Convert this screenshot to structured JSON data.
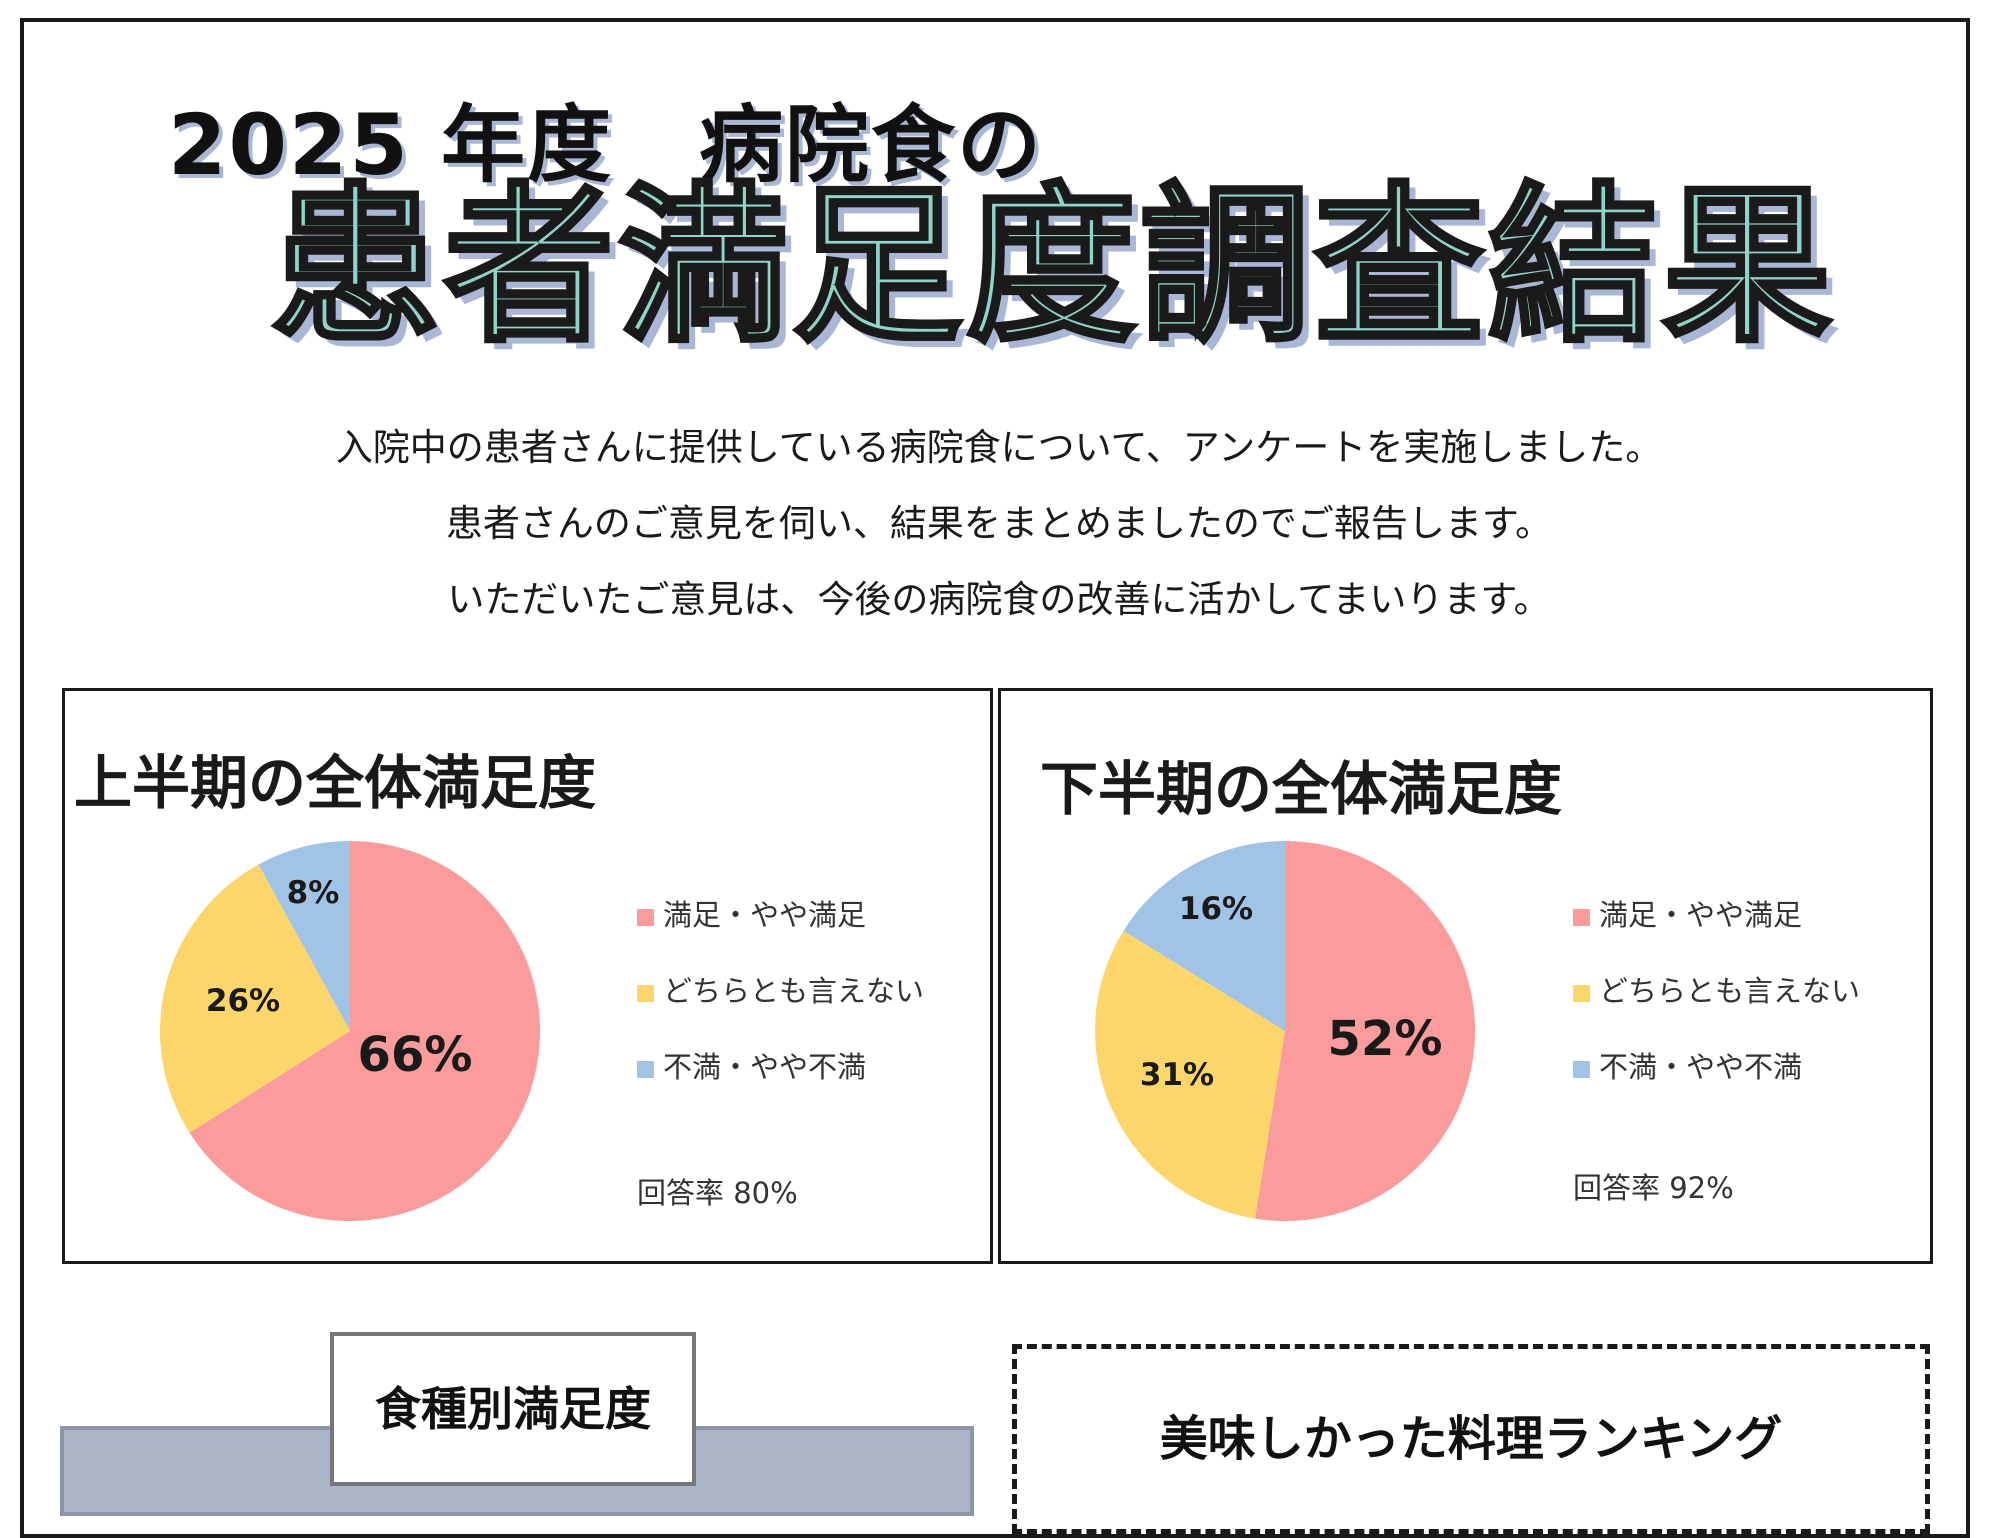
{
  "title": {
    "line1": "2025 年度　病院食の",
    "line2": "患者満足度調査結果"
  },
  "intro": [
    "入院中の患者さんに提供している病院食について、アンケートを実施しました。",
    "患者さんのご意見を伺い、結果をまとめましたのでご報告します。",
    "いただいたご意見は、今後の病院食の改善に活かしてまいります。"
  ],
  "colors": {
    "satisfied": "#fb9b9b",
    "neutral": "#fdd66b",
    "unsatisfied": "#a0c3e6"
  },
  "chart_data": [
    {
      "type": "pie",
      "title": "上半期の全体満足度",
      "categories": [
        "満足・やや満足",
        "どちらとも言えない",
        "不満・やや不満"
      ],
      "values": [
        66,
        26,
        8
      ],
      "labels": [
        "66%",
        "26%",
        "8%"
      ],
      "legend": [
        "満足・やや満足",
        "どちらとも言えない",
        "不満・やや不満"
      ],
      "legend_placement": "right",
      "note": "回答率 80%"
    },
    {
      "type": "pie",
      "title": "下半期の全体満足度",
      "categories": [
        "満足・やや満足",
        "どちらとも言えない",
        "不満・やや不満"
      ],
      "values": [
        52,
        31,
        16
      ],
      "labels": [
        "52%",
        "31%",
        "16%"
      ],
      "legend": [
        "満足・やや満足",
        "どちらとも言えない",
        "不満・やや不満"
      ],
      "legend_placement": "right",
      "note": "回答率 92%"
    }
  ],
  "sections": {
    "meal_type": "食種別満足度",
    "ranking": "美味しかった料理ランキング"
  }
}
